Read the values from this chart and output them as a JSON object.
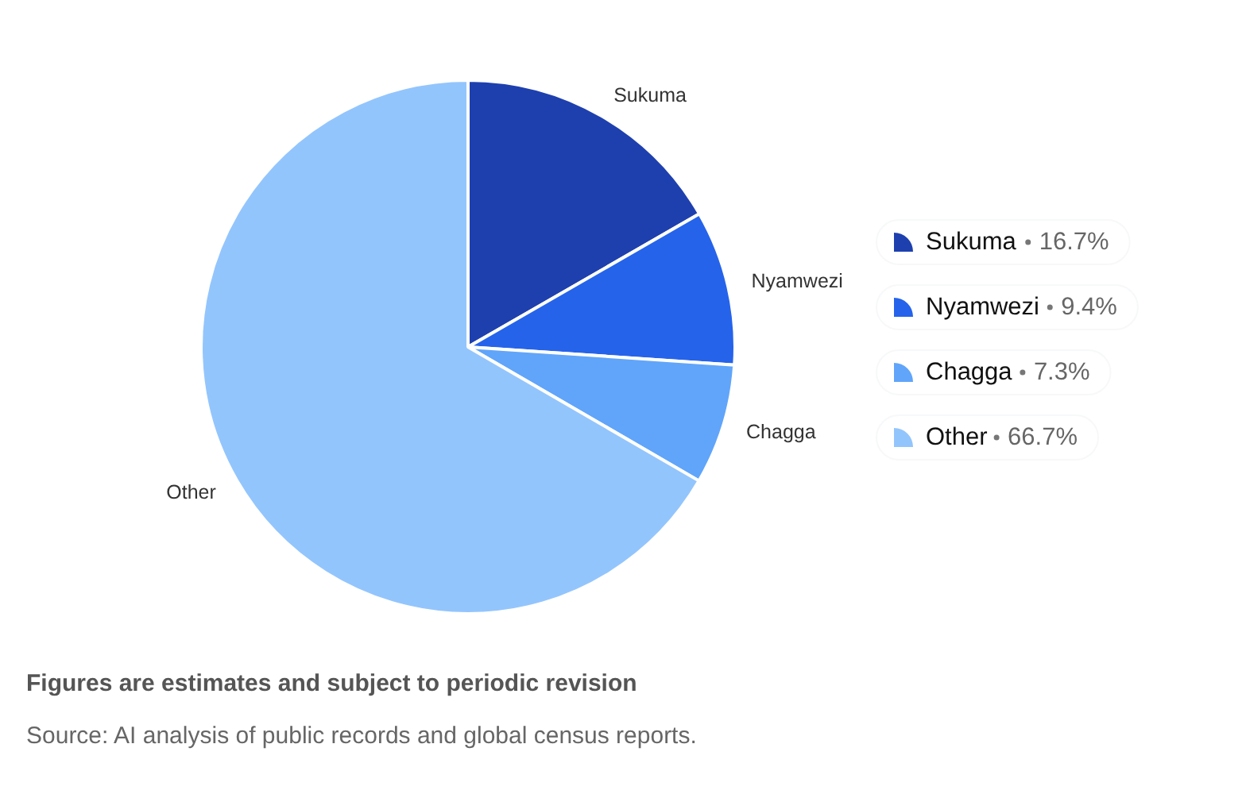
{
  "chart_data": {
    "type": "pie",
    "categories": [
      "Sukuma",
      "Nyamwezi",
      "Chagga",
      "Other"
    ],
    "values": [
      16.7,
      9.4,
      7.3,
      66.7
    ],
    "colors": [
      "#1e40af",
      "#2563eb",
      "#60a5fa",
      "#93c5fd"
    ],
    "value_labels": [
      "16.7%",
      "9.4%",
      "7.3%",
      "66.7%"
    ],
    "legend": "right",
    "annotations": [
      "Figures are estimates and subject to periodic revision",
      "Source: AI analysis of public records and global census reports."
    ]
  }
}
